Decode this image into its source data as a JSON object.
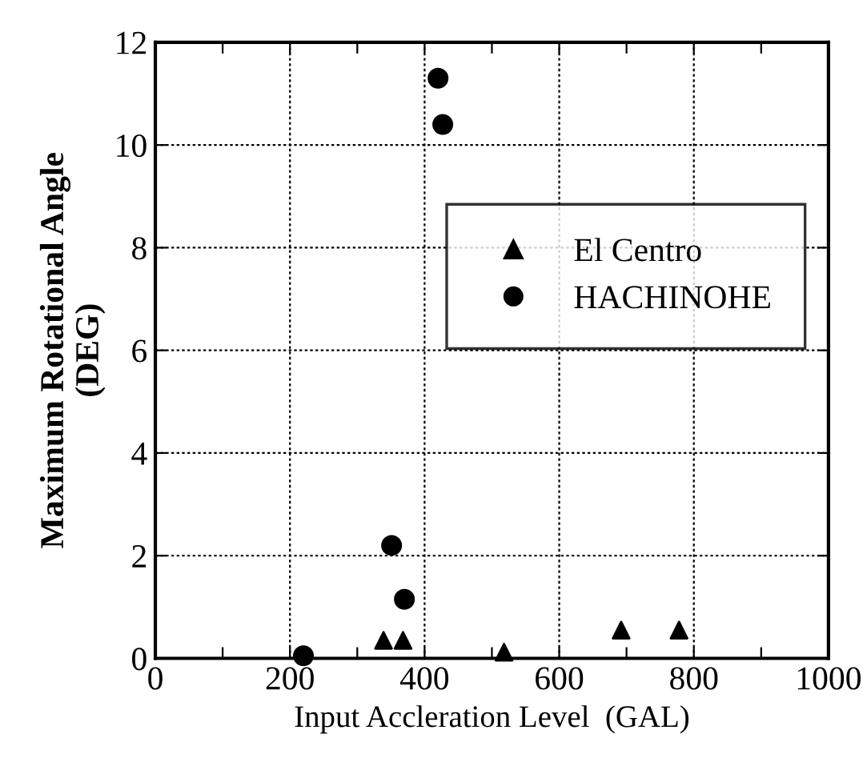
{
  "chart_data": {
    "type": "scatter",
    "xlabel": "Input Accleration Level  (GAL)",
    "ylabel": "Maximum Rotational Angle\n(DEG)",
    "xlim": [
      0,
      1000
    ],
    "ylim": [
      0,
      12
    ],
    "xticks": [
      0,
      {
        "value": 100,
        "label": null
      },
      200,
      {
        "value": 300,
        "label": null
      },
      400,
      {
        "value": 500,
        "label": null
      },
      600,
      {
        "value": 700,
        "label": null
      },
      800,
      {
        "value": 900,
        "label": null
      },
      1000
    ],
    "yticks": [
      0,
      2,
      4,
      6,
      8,
      10,
      12
    ],
    "grid": true,
    "legend": "right",
    "series": [
      {
        "name": "El Centro",
        "color": "#000000",
        "marker": "triangle",
        "x": [
          339,
          368,
          518,
          692,
          778
        ],
        "values": [
          0.35,
          0.35,
          0.12,
          0.55,
          0.55
        ]
      },
      {
        "name": "HACHINOHE",
        "color": "#000000",
        "marker": "circle",
        "x": [
          220,
          351,
          370,
          420,
          427
        ],
        "values": [
          0.05,
          2.2,
          1.15,
          11.3,
          10.4
        ]
      }
    ]
  }
}
